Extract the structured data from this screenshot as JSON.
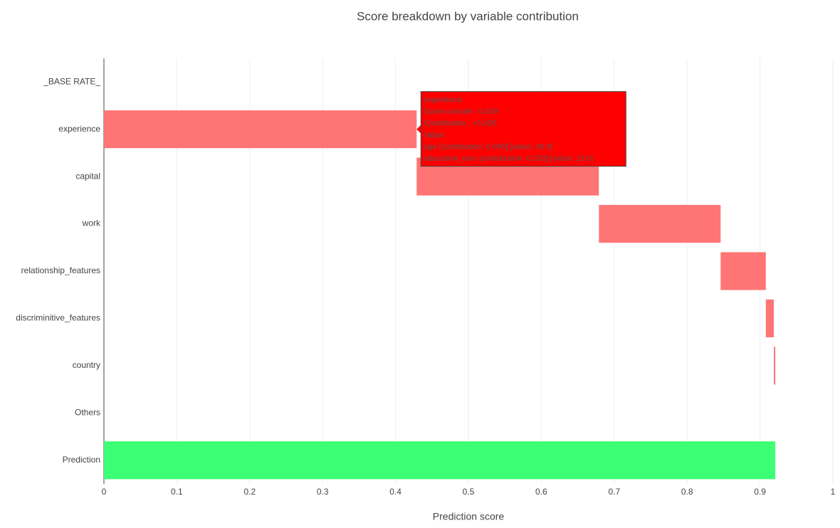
{
  "chart_data": {
    "type": "waterfall",
    "title": "Score breakdown by variable contribution",
    "x_label": "Prediction score",
    "categories": [
      "_BASE RATE_",
      "experience",
      "capital",
      "work",
      "relationship_features",
      "discriminitive_features",
      "country",
      "Others",
      "Prediction"
    ],
    "values": [
      0,
      0.429,
      0.25,
      0.167,
      0.062,
      0.011,
      0.002,
      0,
      0.921
    ],
    "measure": [
      "relative",
      "relative",
      "relative",
      "relative",
      "relative",
      "relative",
      "relative",
      "relative",
      "total"
    ],
    "colors": [
      "#ff7575",
      "#ff7575",
      "#ff7575",
      "#ff7575",
      "#ff7575",
      "#ff7575",
      "#ff7575",
      "#ff7575",
      "#3cff75"
    ],
    "xlim": [
      0,
      1
    ],
    "xticks": [
      0,
      0.1,
      0.2,
      0.3,
      0.4,
      0.5,
      0.6,
      0.7,
      0.8,
      0.9,
      1
    ],
    "grid": true,
    "tooltip": {
      "category_index": 1,
      "color": "#ff0000",
      "lines": [
        "experience",
        "Score cumulé : 0.429",
        "Contribution : +0.429",
        "Value:",
        "age [contribution: 0.096] [value: 34.0]",
        "education_num [contribution: 0.333] [value: 13.0]"
      ]
    }
  }
}
